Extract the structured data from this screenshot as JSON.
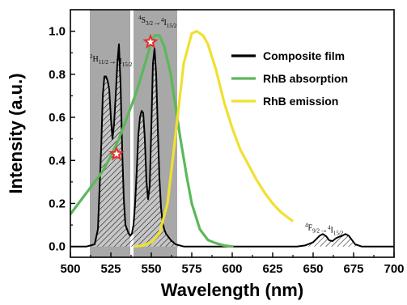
{
  "chart_data": {
    "type": "line",
    "xlabel": "Wavelength (nm)",
    "ylabel": "Intensity (a.u.)",
    "xlim": [
      500,
      700
    ],
    "ylim": [
      -0.05,
      1.1
    ],
    "xticks": [
      500,
      525,
      550,
      575,
      600,
      625,
      650,
      675,
      700
    ],
    "yticks": [
      0.0,
      0.2,
      0.4,
      0.6,
      0.8,
      1.0
    ],
    "xtick_labels": [
      "500",
      "525",
      "550",
      "575",
      "600",
      "625",
      "650",
      "675",
      "700"
    ],
    "ytick_labels": [
      "0.0",
      "0.2",
      "0.4",
      "0.6",
      "0.8",
      "1.0"
    ],
    "legend_position": "top-right",
    "shaded_bands": [
      {
        "x0": 512,
        "x1": 537,
        "color": "#a8a8a8"
      },
      {
        "x0": 539,
        "x1": 566,
        "color": "#a8a8a8"
      }
    ],
    "series": [
      {
        "name": "Composite film",
        "color": "#000000",
        "hatched": true,
        "x": [
          500,
          510,
          515,
          517,
          519,
          520,
          521,
          522,
          523,
          524,
          525,
          526,
          527,
          528,
          529,
          530,
          531,
          532,
          533,
          534,
          535,
          536,
          537,
          538,
          539,
          540,
          541,
          542,
          543,
          544,
          545,
          546,
          547,
          548,
          549,
          550,
          551,
          552,
          553,
          554,
          555,
          556,
          557,
          558,
          559,
          560,
          562,
          565,
          570,
          580,
          600,
          640,
          645,
          650,
          652,
          654,
          656,
          658,
          660,
          662,
          664,
          666,
          668,
          670,
          672,
          674,
          676,
          680,
          700
        ],
        "y": [
          0.0,
          0.0,
          0.01,
          0.08,
          0.45,
          0.7,
          0.79,
          0.79,
          0.77,
          0.73,
          0.6,
          0.5,
          0.57,
          0.7,
          0.85,
          0.94,
          0.75,
          0.45,
          0.22,
          0.1,
          0.08,
          0.06,
          0.05,
          0.06,
          0.1,
          0.2,
          0.35,
          0.52,
          0.6,
          0.63,
          0.62,
          0.5,
          0.3,
          0.22,
          0.28,
          0.55,
          0.85,
          0.92,
          0.8,
          0.55,
          0.32,
          0.18,
          0.11,
          0.08,
          0.06,
          0.05,
          0.03,
          0.01,
          0.0,
          0.0,
          0.0,
          0.0,
          0.005,
          0.02,
          0.035,
          0.05,
          0.058,
          0.048,
          0.028,
          0.025,
          0.038,
          0.045,
          0.05,
          0.058,
          0.05,
          0.03,
          0.01,
          0.0,
          0.0
        ]
      },
      {
        "name": "RhB absorption",
        "color": "#5cb85a",
        "x": [
          500,
          505,
          510,
          515,
          520,
          525,
          530,
          535,
          540,
          545,
          550,
          552,
          555,
          558,
          562,
          565,
          568,
          572,
          575,
          580,
          585,
          590,
          595,
          600
        ],
        "y": [
          0.15,
          0.2,
          0.25,
          0.3,
          0.35,
          0.42,
          0.5,
          0.6,
          0.7,
          0.82,
          0.95,
          0.98,
          0.98,
          0.93,
          0.8,
          0.65,
          0.5,
          0.32,
          0.2,
          0.08,
          0.03,
          0.015,
          0.005,
          0.0
        ]
      },
      {
        "name": "RhB emission",
        "color": "#f0e030",
        "x": [
          540,
          545,
          550,
          555,
          560,
          565,
          570,
          575,
          578,
          582,
          585,
          590,
          595,
          600,
          605,
          610,
          615,
          620,
          625,
          630,
          637
        ],
        "y": [
          0.0,
          0.005,
          0.02,
          0.06,
          0.2,
          0.52,
          0.85,
          0.99,
          1.0,
          0.98,
          0.94,
          0.82,
          0.67,
          0.55,
          0.45,
          0.38,
          0.31,
          0.25,
          0.2,
          0.16,
          0.12
        ]
      }
    ],
    "markers": [
      {
        "x": 528.5,
        "y": 0.43,
        "shape": "star",
        "color": "#e03030"
      },
      {
        "x": 549.5,
        "y": 0.95,
        "shape": "star",
        "color": "#e03030"
      }
    ],
    "annotations": [
      {
        "label": "2H11/2-4I15/2",
        "x": 512,
        "y": 0.86
      },
      {
        "label": "4S3/2-4I15/2",
        "x": 542,
        "y": 1.04
      },
      {
        "label": "4F9/2-4I15/2",
        "x": 645,
        "y": 0.075
      }
    ]
  }
}
